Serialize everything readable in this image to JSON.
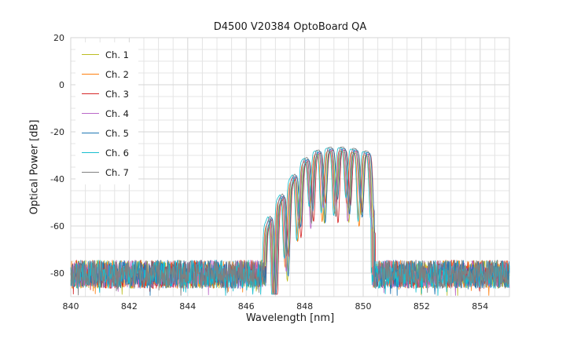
{
  "chart_data": {
    "type": "line",
    "title": "D4500 V20384 OptoBoard QA",
    "xlabel": "Wavelength [nm]",
    "ylabel": "Optical Power [dB]",
    "xlim": [
      840,
      855
    ],
    "ylim": [
      -90,
      20
    ],
    "x_ticks": [
      840,
      842,
      844,
      846,
      848,
      850,
      852,
      854
    ],
    "y_ticks": [
      20,
      0,
      -20,
      -40,
      -60,
      -80
    ],
    "grid": {
      "visible": true,
      "x_step": 0.5,
      "y_step": 5,
      "minor_color": "#e4e4e4",
      "major_color": "#d6d6d6",
      "border_color": "#d6d6d6"
    },
    "legend": {
      "position": "upper left",
      "labels": [
        "Ch. 1",
        "Ch. 2",
        "Ch. 3",
        "Ch. 4",
        "Ch. 5",
        "Ch. 6",
        "Ch. 7"
      ]
    },
    "noise_floor": {
      "mean_db": -80.5,
      "spread_db": 12
    },
    "signal": {
      "range_nm": [
        846.52,
        850.34
      ],
      "fringe_period_nm": 0.42,
      "fringe_peak_ref_nm": 848.02,
      "dip_depth_db": 26,
      "left_extra_dip_slope": 20,
      "envelope_points": [
        [
          846.52,
          -66
        ],
        [
          846.9,
          -54
        ],
        [
          847.3,
          -46
        ],
        [
          847.7,
          -38
        ],
        [
          848.0,
          -32.5
        ],
        [
          848.4,
          -29
        ],
        [
          848.9,
          -27.5
        ],
        [
          849.4,
          -27.5
        ],
        [
          849.9,
          -28.5
        ],
        [
          850.2,
          -29.5
        ],
        [
          850.34,
          -33
        ]
      ],
      "peaks_nm_db": [
        [
          846.76,
          -57
        ],
        [
          847.18,
          -49
        ],
        [
          847.6,
          -40
        ],
        [
          848.02,
          -32
        ],
        [
          848.44,
          -29
        ],
        [
          848.86,
          -27.5
        ],
        [
          849.28,
          -27.5
        ],
        [
          849.7,
          -28
        ],
        [
          850.12,
          -29
        ]
      ]
    },
    "series": [
      {
        "name": "Ch. 1",
        "color": "#bcbd22",
        "offset_nm": 0.02
      },
      {
        "name": "Ch. 2",
        "color": "#ff7f0e",
        "offset_nm": -0.05
      },
      {
        "name": "Ch. 3",
        "color": "#d62728",
        "offset_nm": 0.07
      },
      {
        "name": "Ch. 4",
        "color": "#ba68c8",
        "offset_nm": -0.02
      },
      {
        "name": "Ch. 5",
        "color": "#1f77b4",
        "offset_nm": 0.05
      },
      {
        "name": "Ch. 6",
        "color": "#17becf",
        "offset_nm": -0.08
      },
      {
        "name": "Ch. 7",
        "color": "#7f7f7f",
        "offset_nm": 0.0
      }
    ]
  }
}
